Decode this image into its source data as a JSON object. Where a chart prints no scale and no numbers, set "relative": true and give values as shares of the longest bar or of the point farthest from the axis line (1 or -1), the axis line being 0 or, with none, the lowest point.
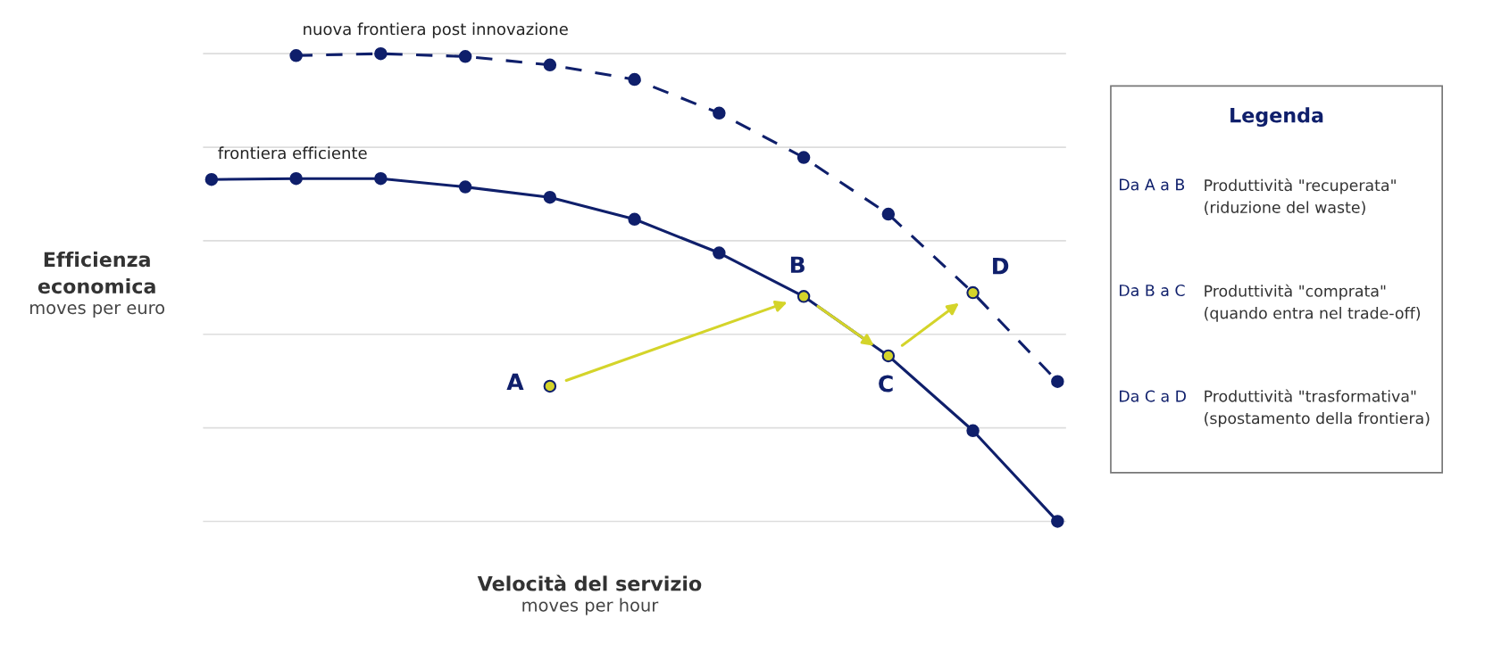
{
  "chart_data": {
    "type": "line",
    "relative": true,
    "grid": "y",
    "xlabel": "Velocità del servizio\nmoves per hour",
    "ylabel": "Efficienza\neconomica\nmoves per euro",
    "categories": [
      null,
      null,
      null,
      null,
      null,
      null,
      null,
      null,
      null,
      null,
      null
    ],
    "series": [
      {
        "name": "frontiera efficiente",
        "color": "#0f1f6b",
        "line_style": "solid",
        "marker": "circle",
        "values": [
          0.731,
          0.733,
          0.733,
          0.715,
          0.693,
          0.646,
          0.574,
          0.481,
          0.354,
          0.194,
          0
        ],
        "colors": [
          null,
          null,
          null,
          null,
          null,
          null,
          null,
          "#d4d42a",
          "#d4d42a",
          null,
          null
        ]
      },
      {
        "name": "nuova frontiera post innovazione",
        "color": "#0f1f6b",
        "line_style": "dashed",
        "marker": "circle",
        "values": [
          null,
          0.996,
          1,
          0.994,
          0.976,
          0.945,
          0.873,
          0.778,
          0.657,
          0.489,
          0.299
        ],
        "colors": [
          null,
          null,
          null,
          null,
          null,
          null,
          null,
          null,
          null,
          "#d4d42a",
          null
        ]
      },
      {
        "color": "#0f1f6b",
        "line_style": "solid",
        "marker": "circle",
        "values": [
          null,
          null,
          null,
          null,
          0.289,
          null,
          null,
          null,
          null,
          null,
          null
        ],
        "colors": [
          null,
          null,
          null,
          null,
          "#d4d42a",
          null,
          null,
          null,
          null,
          null,
          null
        ]
      }
    ],
    "annotations": [
      "A",
      "B",
      "C",
      "D",
      "Legenda",
      "Da A a B",
      "Produttività \"recuperata\"\n(riduzione del waste)",
      "Da B a C",
      "Produttività \"comprata\"\n(quando entra nel trade-off)",
      "Da C a D",
      "Produttività \"trasformativa\"\n(spostamento della frontiera)"
    ]
  }
}
